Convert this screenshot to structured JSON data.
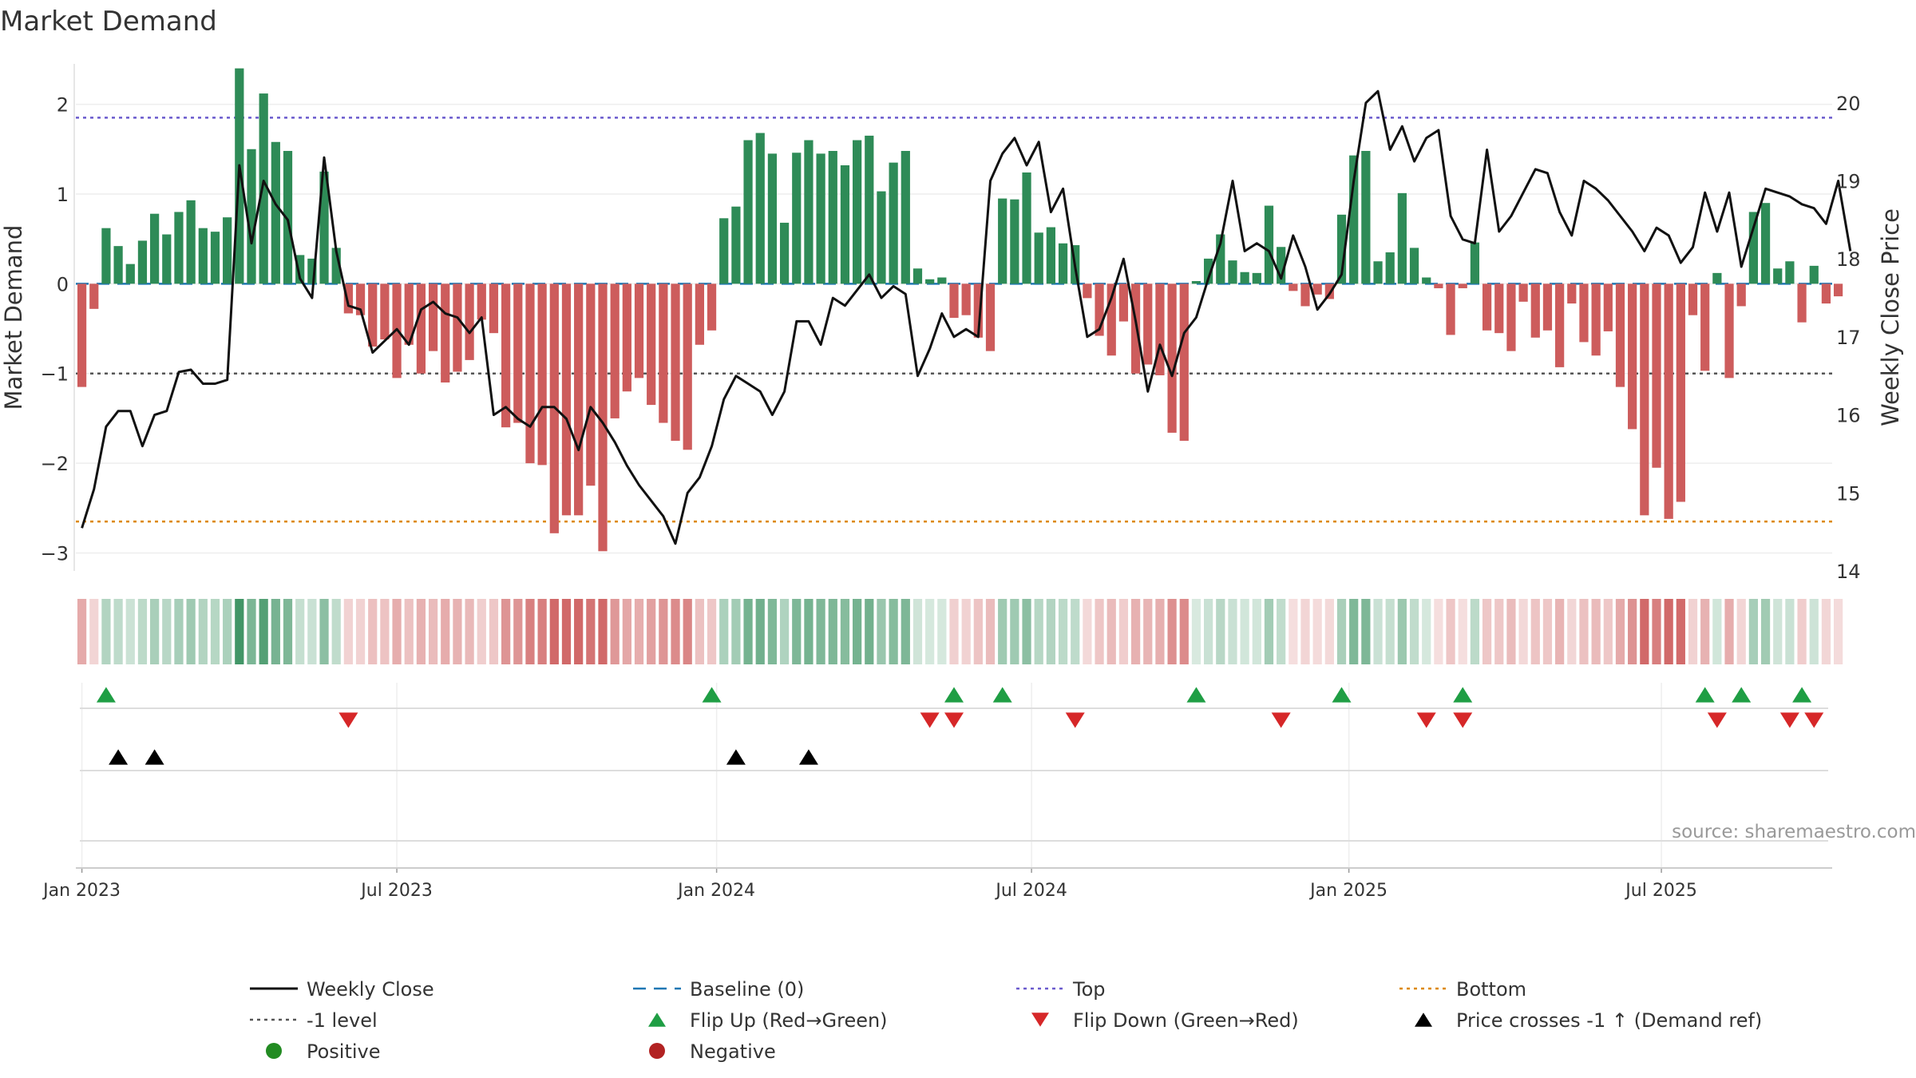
{
  "chart_data": {
    "type": "bar",
    "title": "Market Demand",
    "ylabel": "Market Demand",
    "y2label": "Weekly Close Price",
    "ylim": [
      -3.2,
      2.45
    ],
    "y2lim": [
      14.0,
      20.5
    ],
    "yticks": [
      2,
      1,
      0,
      -1,
      -2,
      -3
    ],
    "y2ticks": [
      20,
      19,
      18,
      17,
      16,
      15,
      14
    ],
    "xlim_weeks": [
      -0.5,
      144.5
    ],
    "xticks": [
      {
        "label": "Jan 2023",
        "week": 0
      },
      {
        "label": "Jul 2023",
        "week": 26
      },
      {
        "label": "Jan 2024",
        "week": 52.4
      },
      {
        "label": "Jul 2024",
        "week": 78.4
      },
      {
        "label": "Jan 2025",
        "week": 104.6
      },
      {
        "label": "Jul 2025",
        "week": 130.4
      }
    ],
    "levels": {
      "top": 1.85,
      "neg1": -1.0,
      "bottom": -2.65,
      "baseline": 0
    },
    "start_date": "Jan 2023",
    "frequency": "weekly",
    "demand": [
      -1.15,
      -0.28,
      0.62,
      0.42,
      0.22,
      0.48,
      0.78,
      0.55,
      0.8,
      0.93,
      0.62,
      0.58,
      0.74,
      2.4,
      1.5,
      2.12,
      1.58,
      1.48,
      0.32,
      0.28,
      1.25,
      0.4,
      -0.33,
      -0.35,
      -0.7,
      -0.62,
      -1.05,
      -0.68,
      -1.0,
      -0.75,
      -1.1,
      -0.98,
      -0.85,
      -0.4,
      -0.55,
      -1.6,
      -1.55,
      -2.0,
      -2.02,
      -2.78,
      -2.58,
      -2.58,
      -2.25,
      -2.98,
      -1.5,
      -1.2,
      -1.05,
      -1.35,
      -1.55,
      -1.75,
      -1.85,
      -0.68,
      -0.52,
      0.73,
      0.86,
      1.6,
      1.68,
      1.45,
      0.68,
      1.46,
      1.6,
      1.45,
      1.48,
      1.32,
      1.6,
      1.65,
      1.03,
      1.35,
      1.48,
      0.17,
      0.05,
      0.07,
      -0.38,
      -0.35,
      -0.6,
      -0.75,
      0.95,
      0.94,
      1.24,
      0.57,
      0.63,
      0.45,
      0.43,
      -0.16,
      -0.58,
      -0.8,
      -0.42,
      -1.0,
      -0.9,
      -1.02,
      -1.66,
      -1.75,
      0.03,
      0.28,
      0.55,
      0.26,
      0.13,
      0.12,
      0.87,
      0.41,
      -0.08,
      -0.25,
      -0.12,
      -0.17,
      0.77,
      1.43,
      1.48,
      0.25,
      0.35,
      1.01,
      0.4,
      0.07,
      -0.05,
      -0.57,
      -0.05,
      0.46,
      -0.52,
      -0.55,
      -0.75,
      -0.2,
      -0.6,
      -0.52,
      -0.93,
      -0.22,
      -0.65,
      -0.8,
      -0.53,
      -1.15,
      -1.62,
      -2.58,
      -2.05,
      -2.62,
      -2.43,
      -0.35,
      -0.97,
      0.12,
      -1.05,
      -0.25,
      0.8,
      0.9,
      0.17,
      0.25,
      -0.43,
      0.2,
      -0.22,
      -0.14
    ],
    "close": [
      14.55,
      15.05,
      15.85,
      16.05,
      16.05,
      15.6,
      16.0,
      16.05,
      16.55,
      16.58,
      16.4,
      16.4,
      16.45,
      19.2,
      18.2,
      19.0,
      18.7,
      18.5,
      17.75,
      17.5,
      19.3,
      18.1,
      17.4,
      17.35,
      16.8,
      16.95,
      17.1,
      16.9,
      17.35,
      17.45,
      17.3,
      17.25,
      17.05,
      17.25,
      16.0,
      16.1,
      15.95,
      15.85,
      16.1,
      16.1,
      15.95,
      15.55,
      16.1,
      15.9,
      15.65,
      15.35,
      15.1,
      14.9,
      14.7,
      14.35,
      15.0,
      15.2,
      15.6,
      16.2,
      16.5,
      16.4,
      16.3,
      16.0,
      16.3,
      17.2,
      17.2,
      16.9,
      17.5,
      17.4,
      17.6,
      17.8,
      17.5,
      17.65,
      17.55,
      16.5,
      16.85,
      17.3,
      17.0,
      17.1,
      17.0,
      19.0,
      19.35,
      19.55,
      19.2,
      19.5,
      18.6,
      18.9,
      17.9,
      17.0,
      17.1,
      17.5,
      18.0,
      17.2,
      16.3,
      16.9,
      16.5,
      17.05,
      17.25,
      17.75,
      18.2,
      19.0,
      18.1,
      18.2,
      18.1,
      17.75,
      18.3,
      17.9,
      17.35,
      17.55,
      17.8,
      19.0,
      20.0,
      20.15,
      19.4,
      19.7,
      19.25,
      19.55,
      19.65,
      18.55,
      18.25,
      18.2,
      19.4,
      18.35,
      18.55,
      18.85,
      19.15,
      19.1,
      18.6,
      18.3,
      19.0,
      18.9,
      18.75,
      18.55,
      18.35,
      18.1,
      18.4,
      18.3,
      17.95,
      18.15,
      18.85,
      18.35,
      18.85,
      17.9,
      18.4,
      18.9,
      18.85,
      18.8,
      18.7,
      18.65,
      18.45,
      19.0,
      18.1
    ],
    "flip_up_weeks": [
      2,
      52,
      72,
      76,
      92,
      104,
      114,
      134,
      137,
      142
    ],
    "flip_down_weeks": [
      22,
      70,
      72,
      82,
      99,
      111,
      114,
      135,
      141,
      143
    ],
    "cross_weeks": [
      3,
      6,
      54,
      60
    ],
    "colors": {
      "positive": "#2e8b57",
      "negative": "#cd5c5c",
      "close_line": "#111111",
      "top": "#6a5acd",
      "neg1": "#555555",
      "bottom": "#dd8800",
      "baseline": "#1f77b4",
      "flip_up": "#1f9e44",
      "flip_down": "#d62728",
      "cross": "#000000",
      "legend_positive": "#228b22",
      "legend_negative": "#b22222"
    },
    "source": "source: sharemaestro.com",
    "legend": [
      {
        "label": "Weekly Close",
        "marker": "line-black"
      },
      {
        "label": "Baseline (0)",
        "marker": "dash-blue"
      },
      {
        "label": "Top",
        "marker": "dot-purple"
      },
      {
        "label": "Bottom",
        "marker": "dot-orange"
      },
      {
        "label": "-1 level",
        "marker": "dot-gray"
      },
      {
        "label": "Flip Up (Red→Green)",
        "marker": "tri-up-green"
      },
      {
        "label": "Flip Down (Green→Red)",
        "marker": "tri-down-red"
      },
      {
        "label": "Price crosses -1 ↑ (Demand ref)",
        "marker": "tri-up-black"
      },
      {
        "label": "Positive",
        "marker": "circle-green"
      },
      {
        "label": "Negative",
        "marker": "circle-red"
      }
    ]
  }
}
